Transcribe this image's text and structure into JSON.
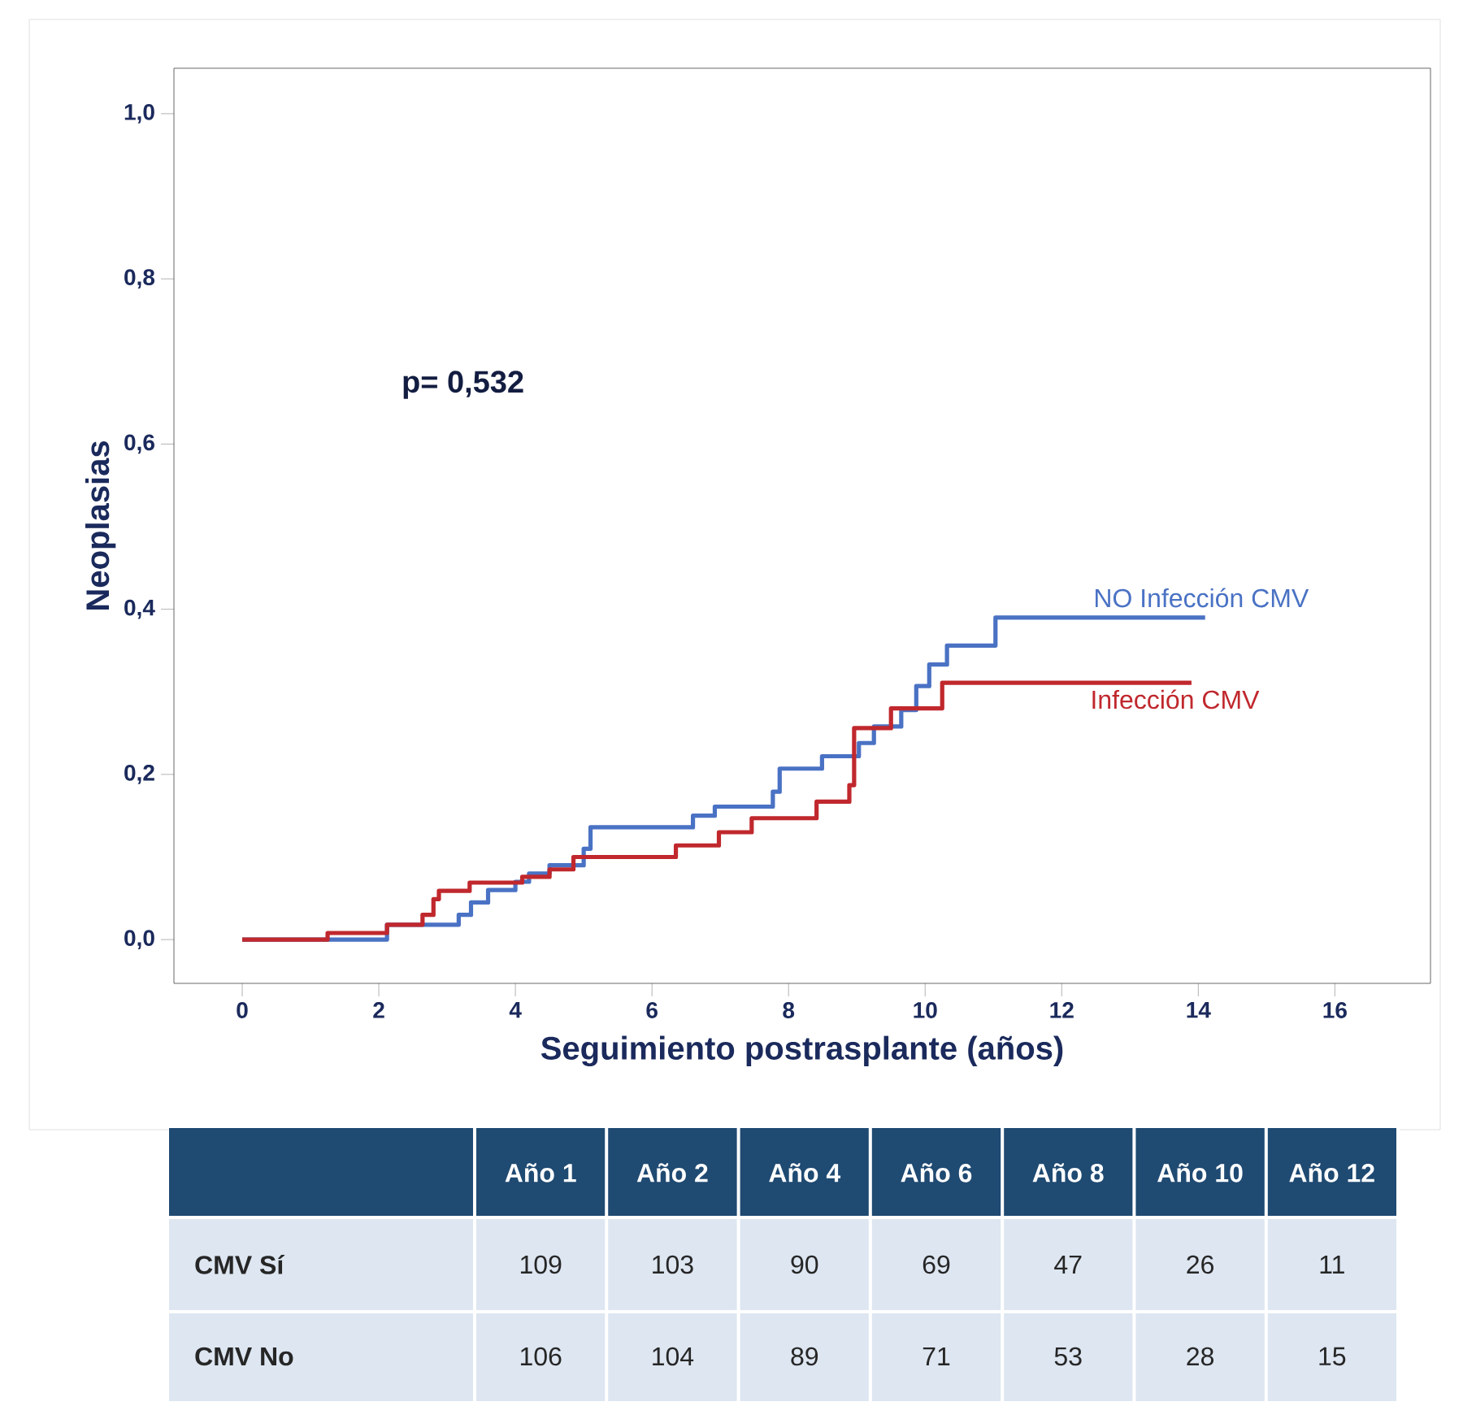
{
  "chart_data": {
    "type": "step",
    "xlabel": "Seguimiento postrasplante (años)",
    "ylabel": "Neoplasias",
    "xlim": [
      -1.0,
      17.4
    ],
    "ylim": [
      -0.053,
      1.055
    ],
    "xticks": [
      0,
      2,
      4,
      6,
      8,
      10,
      12,
      14,
      16
    ],
    "yticks": [
      {
        "value": 0,
        "label": "0,0"
      },
      {
        "value": 0.2,
        "label": "0,2"
      },
      {
        "value": 0.4,
        "label": "0,4"
      },
      {
        "value": 0.6,
        "label": "0,6"
      },
      {
        "value": 0.8,
        "label": "0,8"
      },
      {
        "value": 1.0,
        "label": "1,0"
      }
    ],
    "series": [
      {
        "name": "NO Infección CMV",
        "color": "#4a72c4",
        "x": [
          0,
          2.12,
          3.17,
          3.35,
          3.6,
          4.0,
          4.2,
          4.5,
          5.0,
          5.1,
          6.6,
          6.92,
          7.77,
          7.87,
          8.49,
          9.03,
          9.25,
          9.65,
          9.87,
          10.06,
          10.32,
          11.03,
          14.1
        ],
        "values": [
          0,
          0.018,
          0.03,
          0.045,
          0.06,
          0.07,
          0.08,
          0.09,
          0.11,
          0.136,
          0.15,
          0.161,
          0.179,
          0.207,
          0.222,
          0.238,
          0.258,
          0.278,
          0.307,
          0.333,
          0.356,
          0.39,
          0.39
        ]
      },
      {
        "name": "Infección CMV",
        "color": "#c0282d",
        "x": [
          0,
          1.25,
          2.12,
          2.64,
          2.8,
          2.88,
          3.33,
          4.1,
          4.5,
          4.85,
          6.35,
          6.98,
          7.46,
          8.41,
          8.89,
          8.96,
          9.5,
          10.25,
          13.9
        ],
        "values": [
          0,
          0.008,
          0.018,
          0.03,
          0.049,
          0.059,
          0.069,
          0.076,
          0.085,
          0.1,
          0.114,
          0.13,
          0.147,
          0.167,
          0.187,
          0.256,
          0.28,
          0.311,
          0.311
        ]
      }
    ],
    "annotations": [
      "p= 0,532",
      "Año 1",
      "Año 2",
      "Año 4",
      "Año 6",
      "Año 8",
      "Año 10",
      "Año 12",
      "CMV Sí",
      "109",
      "103",
      "90",
      "69",
      "47",
      "26",
      "11",
      "CMV No",
      "106",
      "104",
      "89",
      "71",
      "53",
      "28",
      "15"
    ]
  }
}
